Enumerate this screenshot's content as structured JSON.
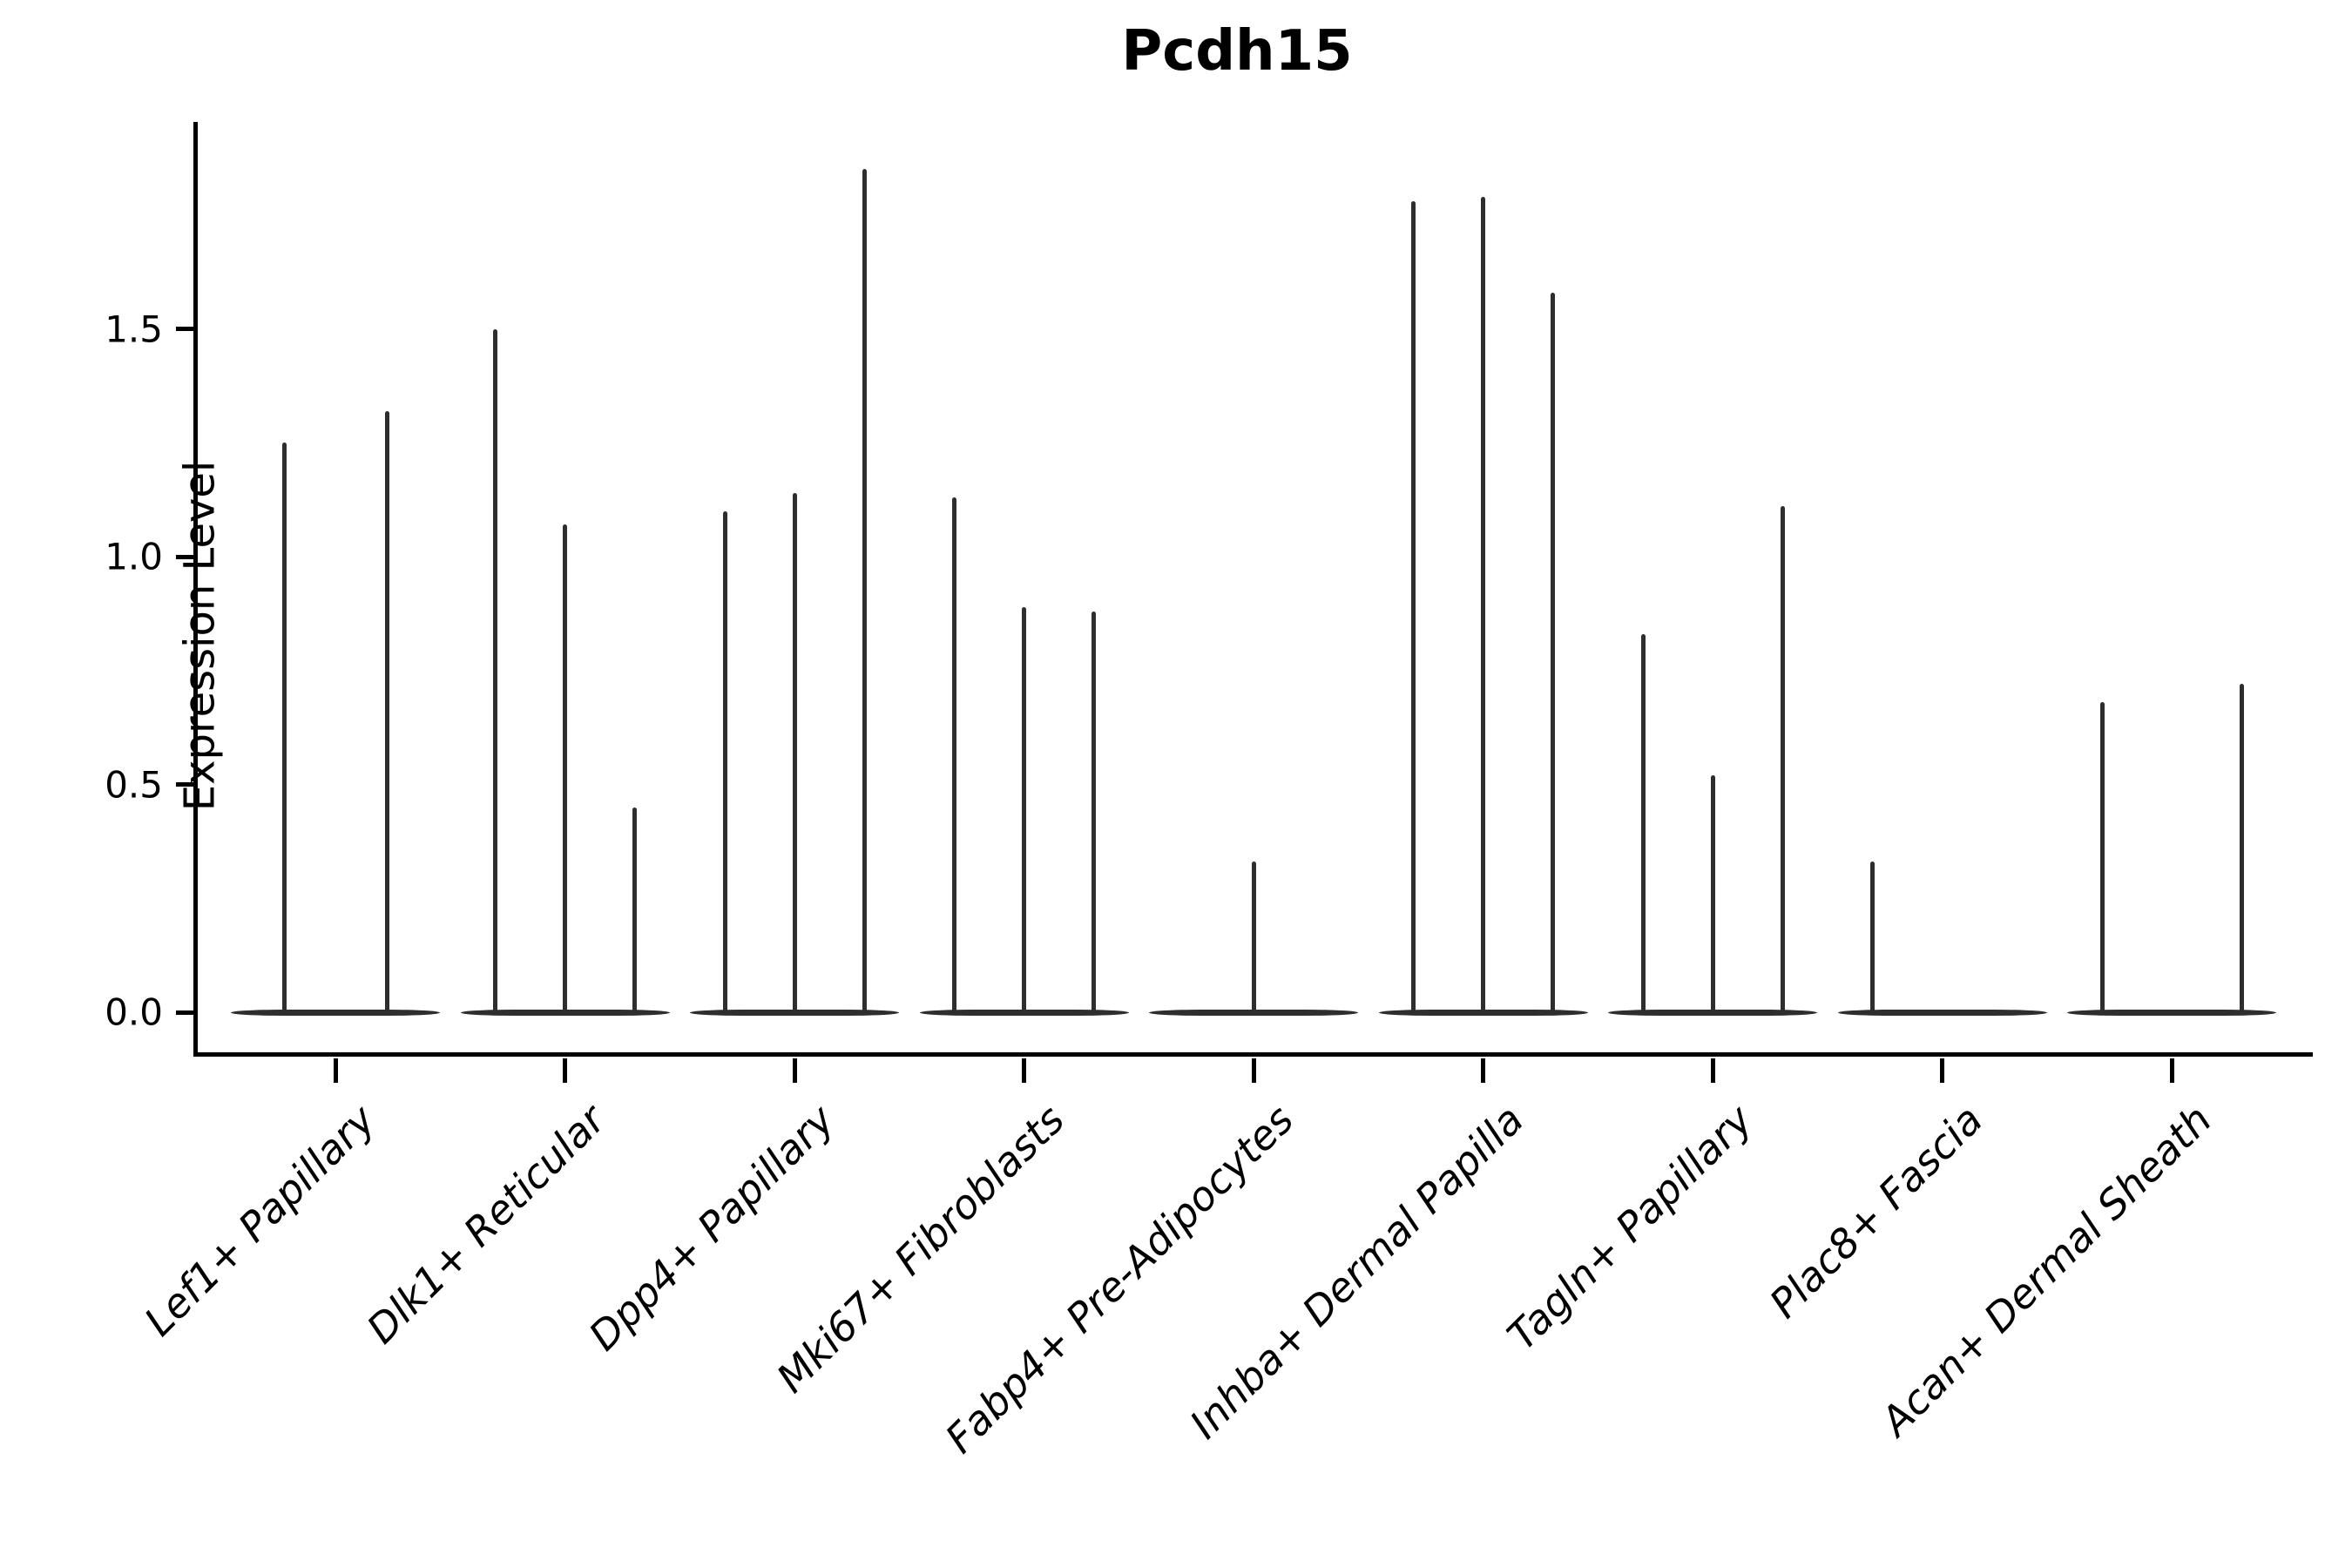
{
  "chart_data": {
    "type": "violin",
    "title": "Pcdh15",
    "ylabel": "Expression Level",
    "xlabel": "",
    "grid": false,
    "legend": "none",
    "y_ticks": [
      {
        "label": "0.0",
        "value": 0.0
      },
      {
        "label": "0.5",
        "value": 0.5
      },
      {
        "label": "1.0",
        "value": 1.0
      },
      {
        "label": "1.5",
        "value": 1.5
      }
    ],
    "ylim": [
      -0.09,
      1.95
    ],
    "categories": [
      "Lef1+ Papillary",
      "Dlk1+ Reticular",
      "Dpp4+ Papillary",
      "Mki67+ Fibroblasts",
      "Fabp4+ Pre-Adipocytes",
      "Inhba+ Dermal Papilla",
      "Tagln+ Papillary",
      "Plac8+ Fascia",
      "Acan+ Dermal Sheath"
    ],
    "violins": [
      {
        "category": "Lef1+ Papillary",
        "maxima": [
          1.25,
          1.32
        ]
      },
      {
        "category": "Dlk1+ Reticular",
        "maxima": [
          1.5,
          1.07,
          0.45
        ]
      },
      {
        "category": "Dpp4+ Papillary",
        "maxima": [
          1.1,
          1.14,
          1.85
        ]
      },
      {
        "category": "Mki67+ Fibroblasts",
        "maxima": [
          1.13,
          0.89,
          0.88
        ]
      },
      {
        "category": "Fabp4+ Pre-Adipocytes",
        "maxima": [
          0,
          0.33,
          0
        ]
      },
      {
        "category": "Inhba+ Dermal Papilla",
        "maxima": [
          1.78,
          1.79,
          1.58
        ]
      },
      {
        "category": "Tagln+ Papillary",
        "maxima": [
          0.83,
          0.52,
          1.11
        ]
      },
      {
        "category": "Plac8+ Fascia",
        "maxima": [
          0.33,
          0,
          0
        ]
      },
      {
        "category": "Acan+ Dermal Sheath",
        "maxima": [
          0.68,
          0,
          0.72
        ]
      }
    ],
    "baseline_value": 0.0,
    "colors": {
      "violin": "#2e2e2e",
      "axis": "#000000",
      "background": "#ffffff"
    }
  }
}
